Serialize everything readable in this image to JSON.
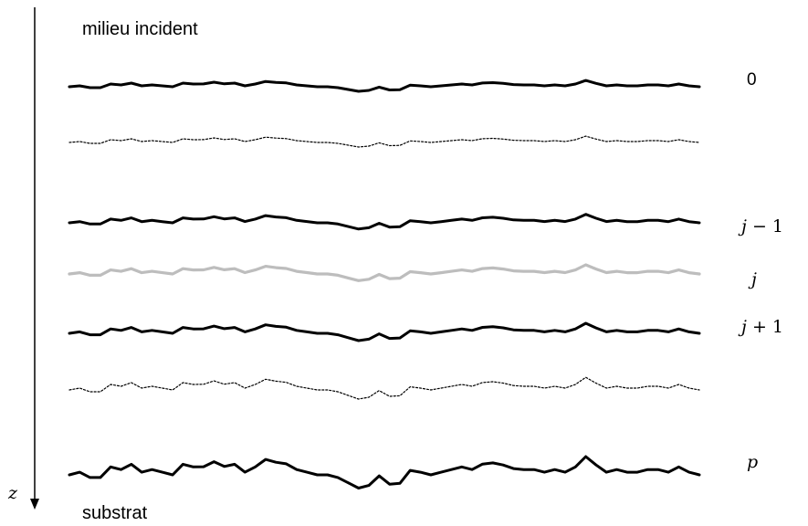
{
  "labels": {
    "top": "milieu incident",
    "bottom": "substrat",
    "axis": "z"
  },
  "interfaces": [
    {
      "id": "0",
      "label_var": "",
      "label_rest": "0",
      "style": "solid"
    },
    {
      "id": "dotted-1",
      "label_var": "",
      "label_rest": "",
      "style": "dotted"
    },
    {
      "id": "j-1",
      "label_var": "j",
      "label_rest": " − 1",
      "style": "solid"
    },
    {
      "id": "j",
      "label_var": "j",
      "label_rest": "",
      "style": "gray"
    },
    {
      "id": "j+1",
      "label_var": "j",
      "label_rest": " + 1",
      "style": "solid"
    },
    {
      "id": "dotted-2",
      "label_var": "",
      "label_rest": "",
      "style": "dotted"
    },
    {
      "id": "p",
      "label_var": "p",
      "label_rest": "",
      "style": "solid"
    }
  ],
  "colors": {
    "line": "#000000",
    "gray": "#bdbdbd"
  }
}
